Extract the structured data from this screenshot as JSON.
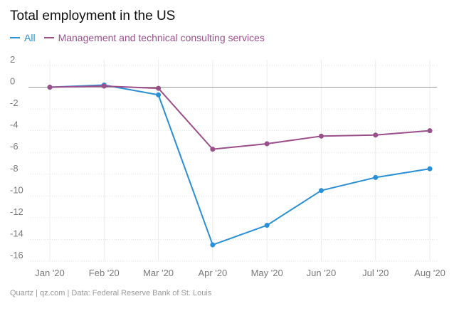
{
  "chart_data": {
    "type": "line",
    "title": "Total employment in the US",
    "categories": [
      "Jan '20",
      "Feb '20",
      "Mar '20",
      "Apr '20",
      "May '20",
      "Jun '20",
      "Jul '20",
      "Aug '20"
    ],
    "series": [
      {
        "name": "All",
        "color": "#2a8fd4",
        "values": [
          0,
          0.2,
          -0.7,
          -14.5,
          -12.7,
          -9.5,
          -8.3,
          -7.5
        ]
      },
      {
        "name": "Management and technical consulting services",
        "color": "#9b4f8a",
        "values": [
          0,
          0.1,
          -0.1,
          -5.7,
          -5.2,
          -4.5,
          -4.4,
          -4.0
        ]
      }
    ],
    "yticks": [
      2,
      0,
      -2,
      -4,
      -6,
      -8,
      -10,
      -12,
      -14,
      -16
    ],
    "ylim": [
      -16,
      2
    ],
    "xlabel": "",
    "ylabel": "",
    "grid": true,
    "source": "Quartz | qz.com | Data: Federal Reserve Bank of St. Louis"
  }
}
